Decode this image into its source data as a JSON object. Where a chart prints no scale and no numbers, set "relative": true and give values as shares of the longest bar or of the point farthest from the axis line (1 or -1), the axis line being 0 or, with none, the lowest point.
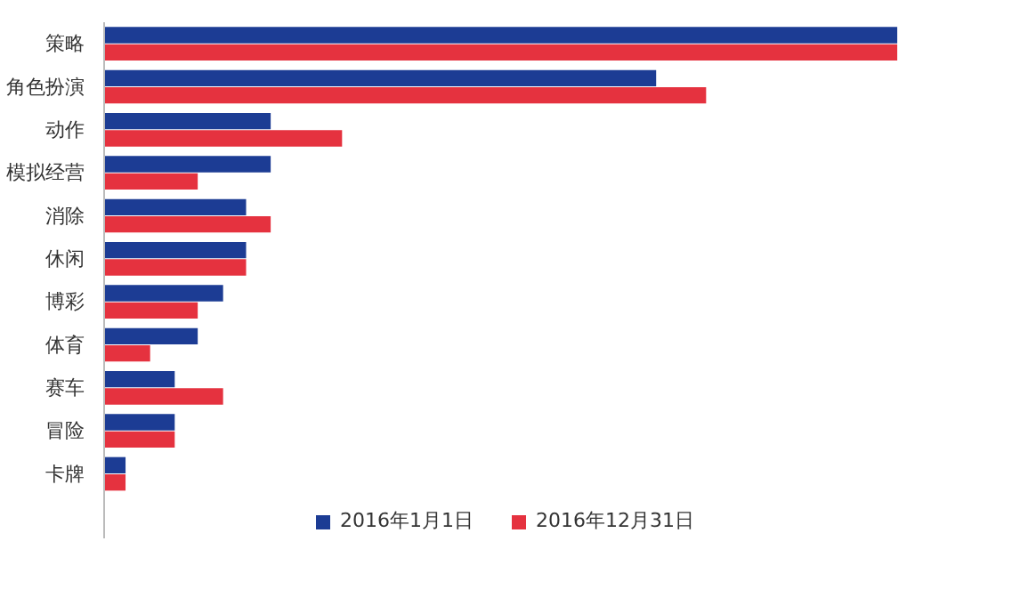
{
  "chart_data": {
    "type": "bar",
    "orientation": "horizontal",
    "relative": true,
    "legend": "bottom",
    "categories": [
      "策略",
      "角色扮演",
      "动作",
      "模拟经营",
      "消除",
      "休闲",
      "博彩",
      "体育",
      "赛车",
      "冒险",
      "卡牌"
    ],
    "series": [
      {
        "name": "2016年1月1日",
        "color": "#1c3c94",
        "values": [
          1,
          0.696,
          0.21,
          0.21,
          0.179,
          0.179,
          0.15,
          0.118,
          0.089,
          0.089,
          0.027
        ]
      },
      {
        "name": "2016年12月31日",
        "color": "#e5323f",
        "values": [
          1,
          0.759,
          0.3,
          0.118,
          0.21,
          0.179,
          0.118,
          0.058,
          0.15,
          0.089,
          0.027
        ]
      }
    ]
  }
}
